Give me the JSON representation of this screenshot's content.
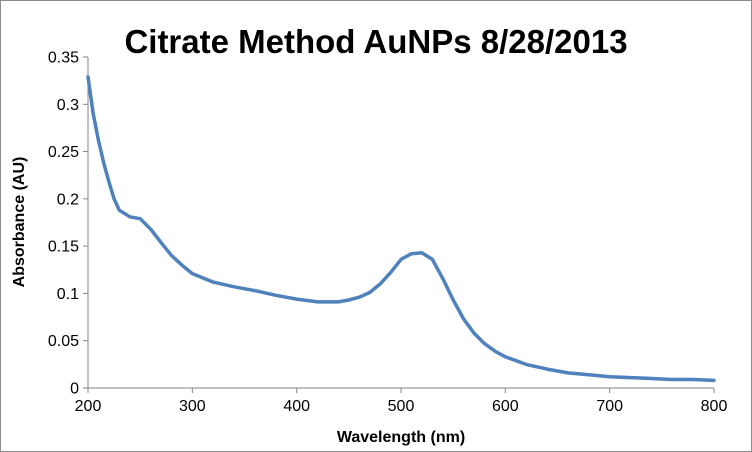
{
  "chart_data": {
    "type": "line",
    "title": "Citrate Method AuNPs 8/28/2013",
    "xlabel": "Wavelength (nm)",
    "ylabel": "Absorbance (AU)",
    "xlim": [
      200,
      800
    ],
    "ylim": [
      0,
      0.35
    ],
    "x_ticks": [
      "200",
      "300",
      "400",
      "500",
      "600",
      "700",
      "800"
    ],
    "y_ticks": [
      "0",
      "0.05",
      "0.1",
      "0.15",
      "0.2",
      "0.25",
      "0.3",
      "0.35"
    ],
    "grid": false,
    "legend": "none",
    "line_color": "#4f81bd",
    "series": [
      {
        "x": [
          200,
          205,
          210,
          215,
          220,
          225,
          230,
          240,
          250,
          260,
          270,
          280,
          290,
          300,
          320,
          340,
          360,
          380,
          400,
          420,
          440,
          450,
          460,
          470,
          480,
          490,
          500,
          510,
          520,
          530,
          540,
          550,
          560,
          570,
          580,
          590,
          600,
          620,
          640,
          660,
          680,
          700,
          720,
          740,
          760,
          780,
          800
        ],
        "y": [
          0.329,
          0.29,
          0.262,
          0.238,
          0.218,
          0.2,
          0.188,
          0.181,
          0.179,
          0.168,
          0.154,
          0.14,
          0.13,
          0.121,
          0.112,
          0.107,
          0.103,
          0.098,
          0.094,
          0.091,
          0.091,
          0.093,
          0.096,
          0.101,
          0.11,
          0.122,
          0.136,
          0.142,
          0.143,
          0.136,
          0.116,
          0.093,
          0.073,
          0.058,
          0.047,
          0.039,
          0.033,
          0.025,
          0.02,
          0.016,
          0.014,
          0.012,
          0.011,
          0.01,
          0.009,
          0.009,
          0.008
        ]
      }
    ]
  }
}
